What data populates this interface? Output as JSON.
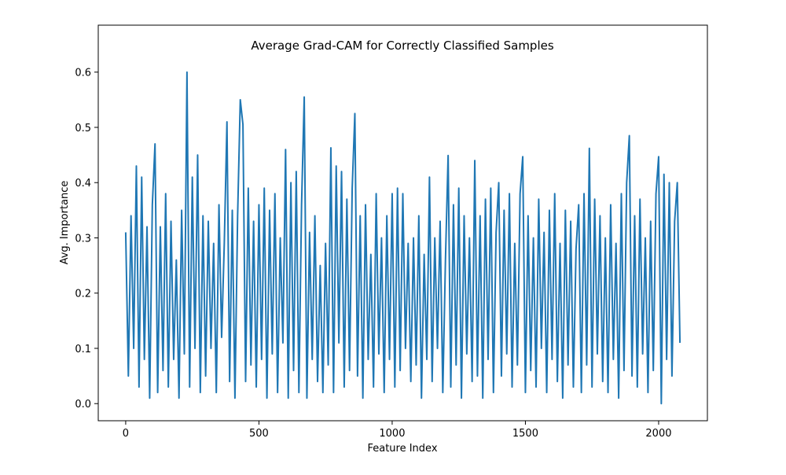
{
  "chart_data": {
    "type": "line",
    "title": "Average Grad-CAM for Correctly Classified Samples",
    "xlabel": "Feature Index",
    "ylabel": "Avg. Importance",
    "xlim": [
      -103,
      2183
    ],
    "ylim": [
      -0.031,
      0.685
    ],
    "xticks": [
      0,
      500,
      1000,
      1500,
      2000
    ],
    "yticks": [
      {
        "value": 0,
        "label": "0.0"
      },
      0.1,
      0.2,
      0.3,
      0.4,
      0.5,
      0.6
    ],
    "x": [
      0,
      10,
      20,
      30,
      40,
      50,
      60,
      70,
      80,
      90,
      100,
      110,
      120,
      130,
      140,
      150,
      160,
      170,
      180,
      190,
      200,
      210,
      220,
      230,
      240,
      250,
      260,
      270,
      280,
      290,
      300,
      310,
      320,
      330,
      340,
      350,
      360,
      370,
      380,
      390,
      400,
      410,
      420,
      430,
      440,
      450,
      460,
      470,
      480,
      490,
      500,
      510,
      520,
      530,
      540,
      550,
      560,
      570,
      580,
      590,
      600,
      610,
      620,
      630,
      640,
      650,
      660,
      670,
      680,
      690,
      700,
      710,
      720,
      730,
      740,
      750,
      760,
      770,
      780,
      790,
      800,
      810,
      820,
      830,
      840,
      850,
      860,
      870,
      880,
      890,
      900,
      910,
      920,
      930,
      940,
      950,
      960,
      970,
      980,
      990,
      1000,
      1010,
      1020,
      1030,
      1040,
      1050,
      1060,
      1070,
      1080,
      1090,
      1100,
      1110,
      1120,
      1130,
      1140,
      1150,
      1160,
      1170,
      1180,
      1190,
      1200,
      1210,
      1220,
      1230,
      1240,
      1250,
      1260,
      1270,
      1280,
      1290,
      1300,
      1310,
      1320,
      1330,
      1340,
      1350,
      1360,
      1370,
      1380,
      1390,
      1400,
      1410,
      1420,
      1430,
      1440,
      1450,
      1460,
      1470,
      1480,
      1490,
      1500,
      1510,
      1520,
      1530,
      1540,
      1550,
      1560,
      1570,
      1580,
      1590,
      1600,
      1610,
      1620,
      1630,
      1640,
      1650,
      1660,
      1670,
      1680,
      1690,
      1700,
      1710,
      1720,
      1730,
      1740,
      1750,
      1760,
      1770,
      1780,
      1790,
      1800,
      1810,
      1820,
      1830,
      1840,
      1850,
      1860,
      1870,
      1880,
      1890,
      1900,
      1910,
      1920,
      1930,
      1940,
      1950,
      1960,
      1970,
      1980,
      1990,
      2000,
      2010,
      2020,
      2030,
      2040,
      2050,
      2060,
      2070,
      2080
    ],
    "series": [
      {
        "color": "#1f77b4",
        "values": [
          0.31,
          0.05,
          0.34,
          0.1,
          0.43,
          0.03,
          0.41,
          0.08,
          0.32,
          0.01,
          0.36,
          0.47,
          0.02,
          0.32,
          0.06,
          0.38,
          0.03,
          0.33,
          0.08,
          0.26,
          0.01,
          0.35,
          0.09,
          0.6,
          0.03,
          0.41,
          0.1,
          0.45,
          0.02,
          0.34,
          0.05,
          0.33,
          0.1,
          0.29,
          0.02,
          0.36,
          0.12,
          0.29,
          0.51,
          0.04,
          0.35,
          0.01,
          0.34,
          0.55,
          0.505,
          0.04,
          0.39,
          0.07,
          0.33,
          0.03,
          0.36,
          0.08,
          0.39,
          0.01,
          0.35,
          0.09,
          0.38,
          0.02,
          0.3,
          0.11,
          0.46,
          0.01,
          0.4,
          0.06,
          0.42,
          0.02,
          0.36,
          0.555,
          0.01,
          0.31,
          0.08,
          0.34,
          0.04,
          0.25,
          0.02,
          0.29,
          0.07,
          0.463,
          0.02,
          0.43,
          0.11,
          0.42,
          0.03,
          0.37,
          0.06,
          0.39,
          0.525,
          0.05,
          0.34,
          0.01,
          0.36,
          0.08,
          0.27,
          0.03,
          0.38,
          0.09,
          0.3,
          0.02,
          0.34,
          0.08,
          0.38,
          0.03,
          0.39,
          0.06,
          0.38,
          0.1,
          0.29,
          0.04,
          0.3,
          0.07,
          0.34,
          0.01,
          0.27,
          0.08,
          0.41,
          0.04,
          0.3,
          0.1,
          0.33,
          0.02,
          0.26,
          0.449,
          0.03,
          0.36,
          0.07,
          0.39,
          0.01,
          0.34,
          0.09,
          0.3,
          0.04,
          0.44,
          0.05,
          0.34,
          0.01,
          0.37,
          0.08,
          0.39,
          0.02,
          0.31,
          0.4,
          0.05,
          0.35,
          0.09,
          0.38,
          0.03,
          0.29,
          0.07,
          0.38,
          0.447,
          0.02,
          0.34,
          0.06,
          0.3,
          0.03,
          0.37,
          0.1,
          0.31,
          0.02,
          0.35,
          0.08,
          0.38,
          0.04,
          0.29,
          0.01,
          0.35,
          0.07,
          0.33,
          0.03,
          0.28,
          0.36,
          0.02,
          0.38,
          0.07,
          0.462,
          0.03,
          0.37,
          0.09,
          0.34,
          0.04,
          0.3,
          0.02,
          0.36,
          0.08,
          0.29,
          0.01,
          0.38,
          0.06,
          0.4,
          0.485,
          0.05,
          0.34,
          0.03,
          0.37,
          0.09,
          0.3,
          0.02,
          0.33,
          0.06,
          0.38,
          0.447,
          0.0,
          0.415,
          0.08,
          0.4,
          0.05,
          0.33,
          0.4,
          0.11
        ]
      }
    ]
  }
}
